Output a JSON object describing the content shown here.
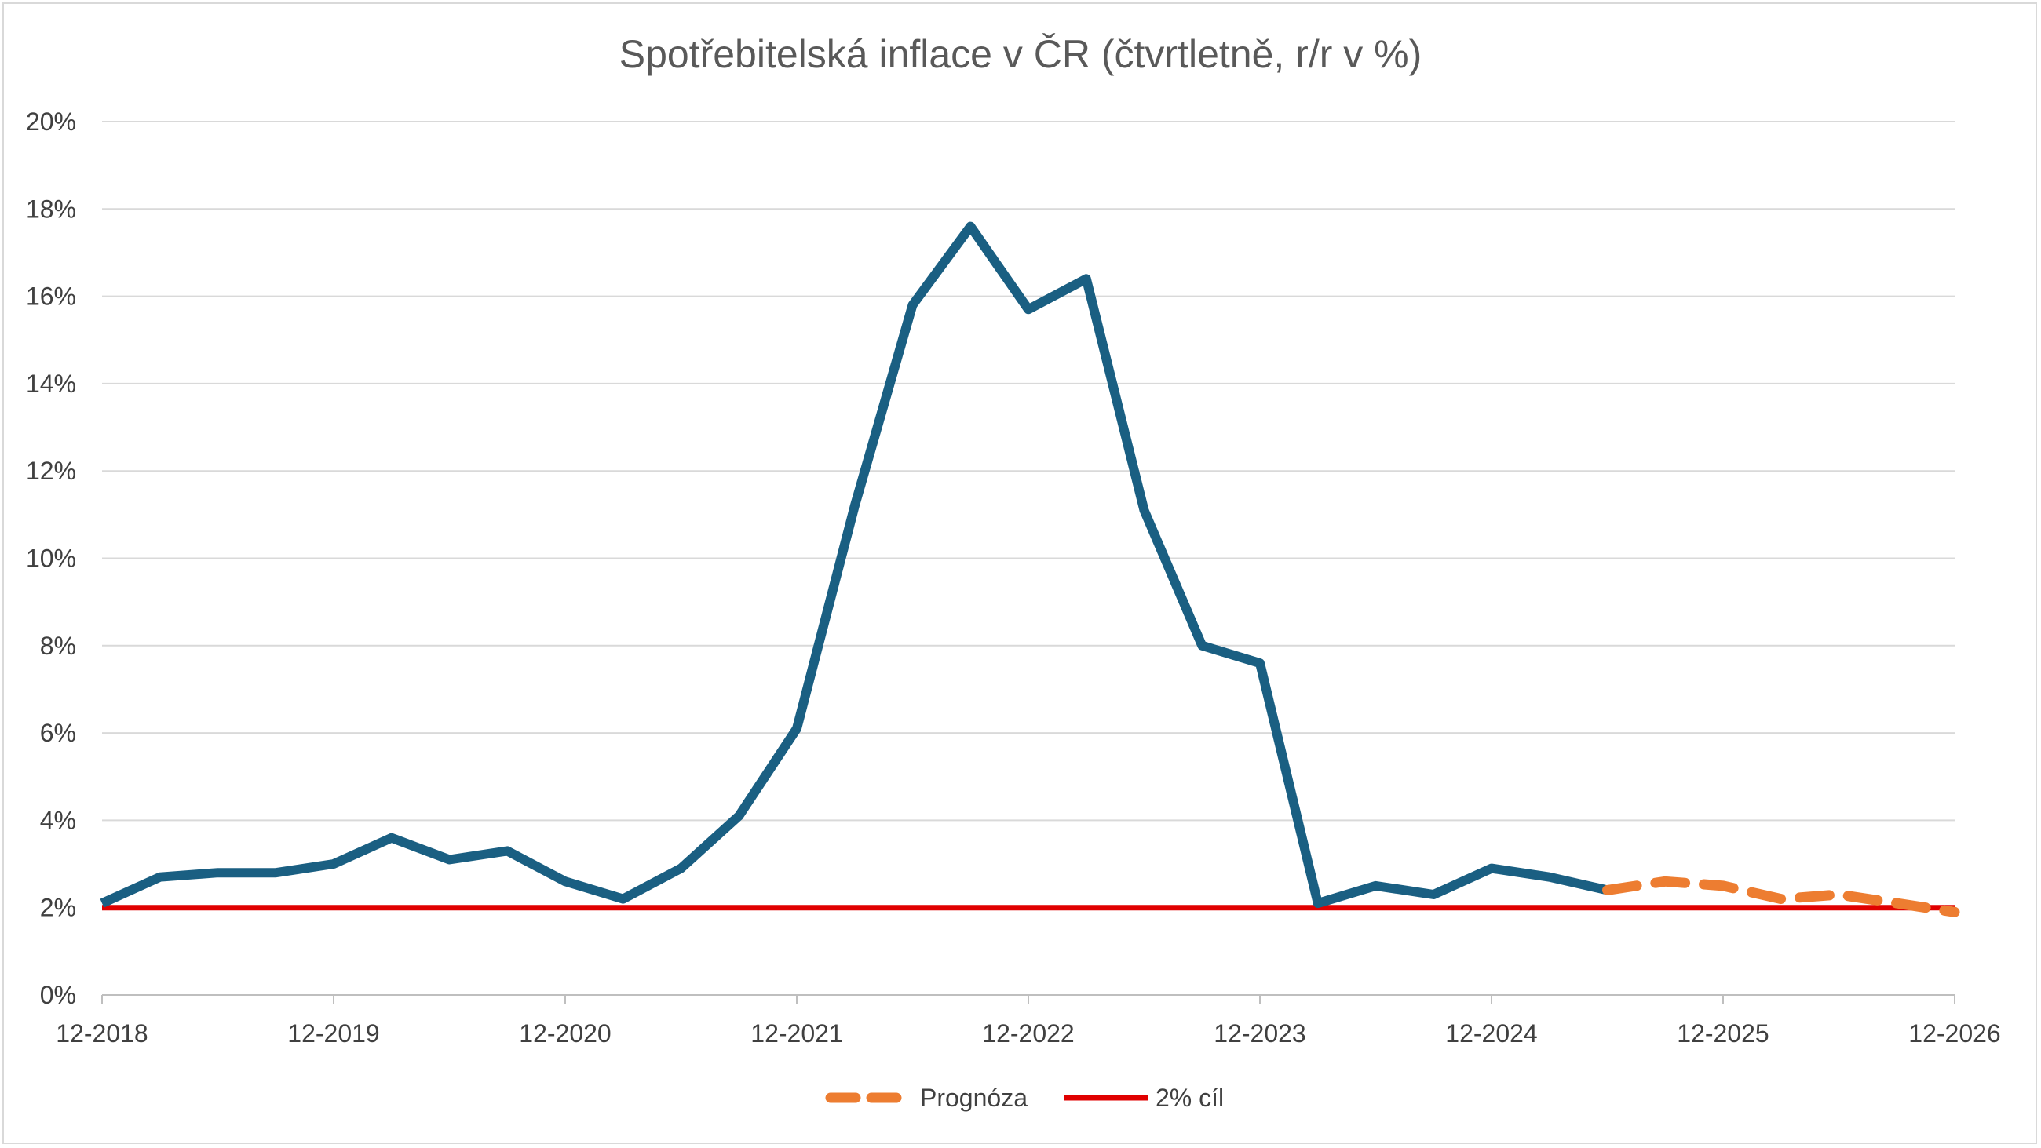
{
  "chart_data": {
    "type": "line",
    "title": "Spotřebitelská inflace v ČR (čtvrtletně, r/r v %)",
    "xlabel": "",
    "ylabel": "",
    "ylim": [
      0,
      20
    ],
    "yticks": [
      0,
      2,
      4,
      6,
      8,
      10,
      12,
      14,
      16,
      18,
      20
    ],
    "ytick_labels": [
      "0%",
      "2%",
      "4%",
      "6%",
      "8%",
      "10%",
      "12%",
      "14%",
      "16%",
      "18%",
      "20%"
    ],
    "xticks": [
      "12-2018",
      "12-2019",
      "12-2020",
      "12-2021",
      "12-2022",
      "12-2023",
      "12-2024",
      "12-2025",
      "12-2026"
    ],
    "grid": true,
    "legend_position": "bottom",
    "series": [
      {
        "color": "#1a5f82",
        "style": "solid",
        "in_legend": false,
        "x": [
          "12-2018",
          "03-2019",
          "06-2019",
          "09-2019",
          "12-2019",
          "03-2020",
          "06-2020",
          "09-2020",
          "12-2020",
          "03-2021",
          "06-2021",
          "09-2021",
          "12-2021",
          "03-2022",
          "06-2022",
          "09-2022",
          "12-2022",
          "03-2023",
          "06-2023",
          "09-2023",
          "12-2023",
          "03-2024",
          "06-2024",
          "09-2024",
          "12-2024",
          "03-2025",
          "06-2025"
        ],
        "values": [
          2.1,
          2.7,
          2.8,
          2.8,
          3.0,
          3.6,
          3.1,
          3.3,
          2.6,
          2.2,
          2.9,
          4.1,
          6.1,
          11.2,
          15.8,
          17.6,
          15.7,
          16.4,
          11.1,
          8.0,
          7.6,
          2.1,
          2.5,
          2.3,
          2.9,
          2.7,
          2.4
        ]
      },
      {
        "name": "Prognóza",
        "color": "#ed7d31",
        "style": "dashed",
        "in_legend": true,
        "x": [
          "06-2025",
          "09-2025",
          "12-2025",
          "03-2026",
          "06-2026",
          "09-2026",
          "12-2026"
        ],
        "values": [
          2.4,
          2.6,
          2.5,
          2.2,
          2.3,
          2.1,
          1.9
        ]
      },
      {
        "name": "2% cíl",
        "color": "#e00000",
        "style": "solid",
        "in_legend": true,
        "x": [
          "12-2018",
          "12-2026"
        ],
        "values": [
          2.0,
          2.0
        ]
      }
    ]
  }
}
